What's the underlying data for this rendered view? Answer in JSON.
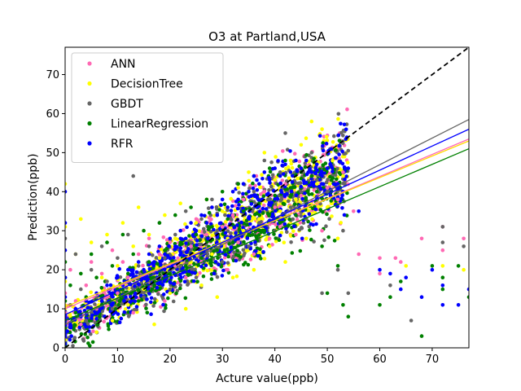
{
  "chart_data": {
    "type": "scatter",
    "title": "O3 at Partland,USA",
    "xlabel": "Acture value(ppb)",
    "ylabel": "Prediction(ppb)",
    "xlim": [
      0,
      77
    ],
    "ylim": [
      0,
      77
    ],
    "xticks": [
      0,
      10,
      20,
      30,
      40,
      50,
      60,
      70
    ],
    "yticks": [
      0,
      10,
      20,
      30,
      40,
      50,
      60,
      70
    ],
    "grid": false,
    "legend_position": "top-left",
    "identity_line": {
      "style": "dashed",
      "color": "#000000"
    },
    "series": [
      {
        "name": "ANN",
        "color": "#ff69b4",
        "fit": {
          "y_at_0": 10.0,
          "y_at_77": 53.5
        },
        "points": [
          [
            0,
            3
          ],
          [
            0,
            9
          ],
          [
            0,
            14
          ],
          [
            1,
            20
          ],
          [
            2,
            12
          ],
          [
            3,
            6
          ],
          [
            4,
            16
          ],
          [
            5,
            22
          ],
          [
            6,
            10
          ],
          [
            7,
            19
          ],
          [
            8,
            13
          ],
          [
            9,
            25
          ],
          [
            10,
            14
          ],
          [
            11,
            22
          ],
          [
            12,
            18
          ],
          [
            13,
            9
          ],
          [
            14,
            24
          ],
          [
            15,
            20
          ],
          [
            16,
            28
          ],
          [
            17,
            17
          ],
          [
            18,
            24
          ],
          [
            19,
            12
          ],
          [
            20,
            27
          ],
          [
            21,
            21
          ],
          [
            22,
            30
          ],
          [
            23,
            18
          ],
          [
            24,
            26
          ],
          [
            25,
            33
          ],
          [
            26,
            22
          ],
          [
            27,
            29
          ],
          [
            28,
            36
          ],
          [
            29,
            25
          ],
          [
            30,
            31
          ],
          [
            31,
            20
          ],
          [
            32,
            34
          ],
          [
            33,
            27
          ],
          [
            34,
            38
          ],
          [
            35,
            30
          ],
          [
            36,
            24
          ],
          [
            37,
            33
          ],
          [
            38,
            40
          ],
          [
            39,
            28
          ],
          [
            40,
            36
          ],
          [
            41,
            31
          ],
          [
            42,
            42
          ],
          [
            43,
            35
          ],
          [
            44,
            29
          ],
          [
            45,
            39
          ],
          [
            46,
            33
          ],
          [
            47,
            44
          ],
          [
            48,
            37
          ],
          [
            49,
            30
          ],
          [
            50,
            41
          ],
          [
            52,
            38
          ],
          [
            53,
            45
          ],
          [
            55,
            35
          ],
          [
            56,
            24
          ],
          [
            60,
            19
          ],
          [
            60,
            23
          ],
          [
            63,
            23
          ],
          [
            64,
            22
          ],
          [
            68,
            28
          ],
          [
            72,
            31
          ],
          [
            72,
            25
          ],
          [
            76,
            28
          ]
        ]
      },
      {
        "name": "DecisionTree",
        "color": "#ffff00",
        "fit": {
          "y_at_0": 10.5,
          "y_at_77": 53.0
        },
        "points": [
          [
            0,
            2
          ],
          [
            0,
            17
          ],
          [
            0,
            31
          ],
          [
            0,
            42
          ],
          [
            1,
            8
          ],
          [
            2,
            24
          ],
          [
            3,
            33
          ],
          [
            4,
            12
          ],
          [
            5,
            27
          ],
          [
            6,
            4
          ],
          [
            7,
            18
          ],
          [
            8,
            29
          ],
          [
            9,
            7
          ],
          [
            10,
            21
          ],
          [
            11,
            32
          ],
          [
            12,
            11
          ],
          [
            13,
            26
          ],
          [
            14,
            36
          ],
          [
            15,
            15
          ],
          [
            16,
            29
          ],
          [
            17,
            6
          ],
          [
            18,
            23
          ],
          [
            19,
            34
          ],
          [
            20,
            14
          ],
          [
            21,
            28
          ],
          [
            22,
            37
          ],
          [
            23,
            10
          ],
          [
            24,
            22
          ],
          [
            25,
            32
          ],
          [
            26,
            16
          ],
          [
            27,
            38
          ],
          [
            28,
            24
          ],
          [
            29,
            13
          ],
          [
            30,
            35
          ],
          [
            31,
            28
          ],
          [
            32,
            18
          ],
          [
            33,
            41
          ],
          [
            34,
            30
          ],
          [
            35,
            45
          ],
          [
            36,
            20
          ],
          [
            37,
            33
          ],
          [
            38,
            50
          ],
          [
            39,
            26
          ],
          [
            40,
            43
          ],
          [
            41,
            35
          ],
          [
            42,
            22
          ],
          [
            43,
            48
          ],
          [
            44,
            38
          ],
          [
            45,
            52
          ],
          [
            46,
            28
          ],
          [
            47,
            58
          ],
          [
            48,
            42
          ],
          [
            49,
            56
          ],
          [
            50,
            36
          ],
          [
            51,
            48
          ],
          [
            52,
            28
          ],
          [
            53,
            44
          ],
          [
            65,
            21
          ],
          [
            72,
            21
          ],
          [
            76,
            20
          ]
        ]
      },
      {
        "name": "GBDT",
        "color": "#666666",
        "fit": {
          "y_at_0": 6.0,
          "y_at_77": 58.5
        },
        "points": [
          [
            0,
            5
          ],
          [
            0,
            18
          ],
          [
            0,
            28
          ],
          [
            1,
            11
          ],
          [
            2,
            24
          ],
          [
            3,
            15
          ],
          [
            4,
            7
          ],
          [
            5,
            20
          ],
          [
            6,
            13
          ],
          [
            7,
            26
          ],
          [
            8,
            17
          ],
          [
            9,
            10
          ],
          [
            10,
            23
          ],
          [
            11,
            16
          ],
          [
            12,
            29
          ],
          [
            13,
            44
          ],
          [
            14,
            21
          ],
          [
            15,
            13
          ],
          [
            16,
            26
          ],
          [
            17,
            19
          ],
          [
            18,
            32
          ],
          [
            19,
            23
          ],
          [
            20,
            15
          ],
          [
            21,
            29
          ],
          [
            22,
            21
          ],
          [
            23,
            35
          ],
          [
            24,
            27
          ],
          [
            25,
            18
          ],
          [
            26,
            33
          ],
          [
            27,
            25
          ],
          [
            28,
            38
          ],
          [
            29,
            30
          ],
          [
            30,
            22
          ],
          [
            31,
            36
          ],
          [
            32,
            28
          ],
          [
            33,
            42
          ],
          [
            34,
            34
          ],
          [
            35,
            26
          ],
          [
            36,
            40
          ],
          [
            37,
            32
          ],
          [
            38,
            48
          ],
          [
            39,
            38
          ],
          [
            40,
            30
          ],
          [
            41,
            45
          ],
          [
            42,
            55
          ],
          [
            43,
            36
          ],
          [
            44,
            48
          ],
          [
            45,
            40
          ],
          [
            46,
            33
          ],
          [
            47,
            50
          ],
          [
            48,
            43
          ],
          [
            49,
            14
          ],
          [
            50,
            40
          ],
          [
            52,
            20
          ],
          [
            53,
            30
          ],
          [
            54,
            14
          ],
          [
            62,
            16
          ],
          [
            66,
            7
          ],
          [
            72,
            31
          ],
          [
            72,
            27
          ],
          [
            76,
            26
          ]
        ]
      },
      {
        "name": "LinearRegression",
        "color": "#008000",
        "fit": {
          "y_at_0": 7.0,
          "y_at_77": 51.0
        },
        "points": [
          [
            0,
            5
          ],
          [
            0,
            12
          ],
          [
            0,
            22
          ],
          [
            1,
            16
          ],
          [
            2,
            9
          ],
          [
            3,
            19
          ],
          [
            4,
            13
          ],
          [
            5,
            24
          ],
          [
            6,
            18
          ],
          [
            7,
            11
          ],
          [
            8,
            27
          ],
          [
            9,
            21
          ],
          [
            10,
            15
          ],
          [
            11,
            29
          ],
          [
            12,
            19
          ],
          [
            13,
            24
          ],
          [
            14,
            12
          ],
          [
            15,
            30
          ],
          [
            16,
            22
          ],
          [
            17,
            17
          ],
          [
            18,
            32
          ],
          [
            19,
            25
          ],
          [
            20,
            19
          ],
          [
            21,
            34
          ],
          [
            22,
            27
          ],
          [
            23,
            21
          ],
          [
            24,
            36
          ],
          [
            25,
            29
          ],
          [
            26,
            23
          ],
          [
            27,
            38
          ],
          [
            28,
            31
          ],
          [
            29,
            25
          ],
          [
            30,
            40
          ],
          [
            31,
            33
          ],
          [
            32,
            27
          ],
          [
            33,
            42
          ],
          [
            34,
            35
          ],
          [
            35,
            29
          ],
          [
            36,
            44
          ],
          [
            37,
            37
          ],
          [
            38,
            30
          ],
          [
            39,
            46
          ],
          [
            40,
            39
          ],
          [
            41,
            32
          ],
          [
            42,
            48
          ],
          [
            43,
            41
          ],
          [
            44,
            34
          ],
          [
            45,
            45
          ],
          [
            46,
            37
          ],
          [
            47,
            44
          ],
          [
            48,
            40
          ],
          [
            49,
            26
          ],
          [
            50,
            14
          ],
          [
            52,
            21
          ],
          [
            53,
            11
          ],
          [
            54,
            8
          ],
          [
            60,
            11
          ],
          [
            62,
            13
          ],
          [
            64,
            17
          ],
          [
            68,
            3
          ],
          [
            70,
            21
          ],
          [
            72,
            18
          ],
          [
            72,
            15
          ],
          [
            75,
            21
          ],
          [
            77,
            13
          ]
        ]
      },
      {
        "name": "RFR",
        "color": "#0000ff",
        "fit": {
          "y_at_0": 8.5,
          "y_at_77": 56.0
        },
        "points": [
          [
            0,
            3
          ],
          [
            0,
            8
          ],
          [
            0,
            13
          ],
          [
            0,
            18
          ],
          [
            0,
            25
          ],
          [
            0,
            32
          ],
          [
            0,
            40
          ],
          [
            1,
            6
          ],
          [
            2,
            10
          ],
          [
            3,
            8
          ],
          [
            4,
            12
          ],
          [
            5,
            10
          ],
          [
            6,
            14
          ],
          [
            7,
            12
          ],
          [
            8,
            16
          ],
          [
            9,
            14
          ],
          [
            10,
            18
          ],
          [
            11,
            16
          ],
          [
            12,
            20
          ],
          [
            13,
            18
          ],
          [
            14,
            22
          ],
          [
            15,
            20
          ],
          [
            16,
            24
          ],
          [
            17,
            22
          ],
          [
            18,
            26
          ],
          [
            19,
            24
          ],
          [
            20,
            28
          ],
          [
            21,
            26
          ],
          [
            22,
            30
          ],
          [
            23,
            28
          ],
          [
            24,
            32
          ],
          [
            25,
            30
          ],
          [
            26,
            34
          ],
          [
            27,
            32
          ],
          [
            28,
            36
          ],
          [
            29,
            34
          ],
          [
            30,
            38
          ],
          [
            31,
            36
          ],
          [
            32,
            40
          ],
          [
            33,
            38
          ],
          [
            34,
            42
          ],
          [
            35,
            40
          ],
          [
            36,
            44
          ],
          [
            37,
            42
          ],
          [
            38,
            45
          ],
          [
            39,
            43
          ],
          [
            40,
            46
          ],
          [
            41,
            44
          ],
          [
            42,
            47
          ],
          [
            43,
            45
          ],
          [
            44,
            48
          ],
          [
            45,
            46
          ],
          [
            46,
            48
          ],
          [
            47,
            45
          ],
          [
            48,
            47
          ],
          [
            49,
            44
          ],
          [
            50,
            46
          ],
          [
            52,
            42
          ],
          [
            53,
            40
          ],
          [
            54,
            46
          ],
          [
            56,
            35
          ],
          [
            60,
            20
          ],
          [
            62,
            19
          ],
          [
            64,
            15
          ],
          [
            65,
            18
          ],
          [
            68,
            13
          ],
          [
            70,
            20
          ],
          [
            72,
            16
          ],
          [
            72,
            11
          ],
          [
            75,
            11
          ],
          [
            77,
            15
          ]
        ]
      }
    ]
  }
}
